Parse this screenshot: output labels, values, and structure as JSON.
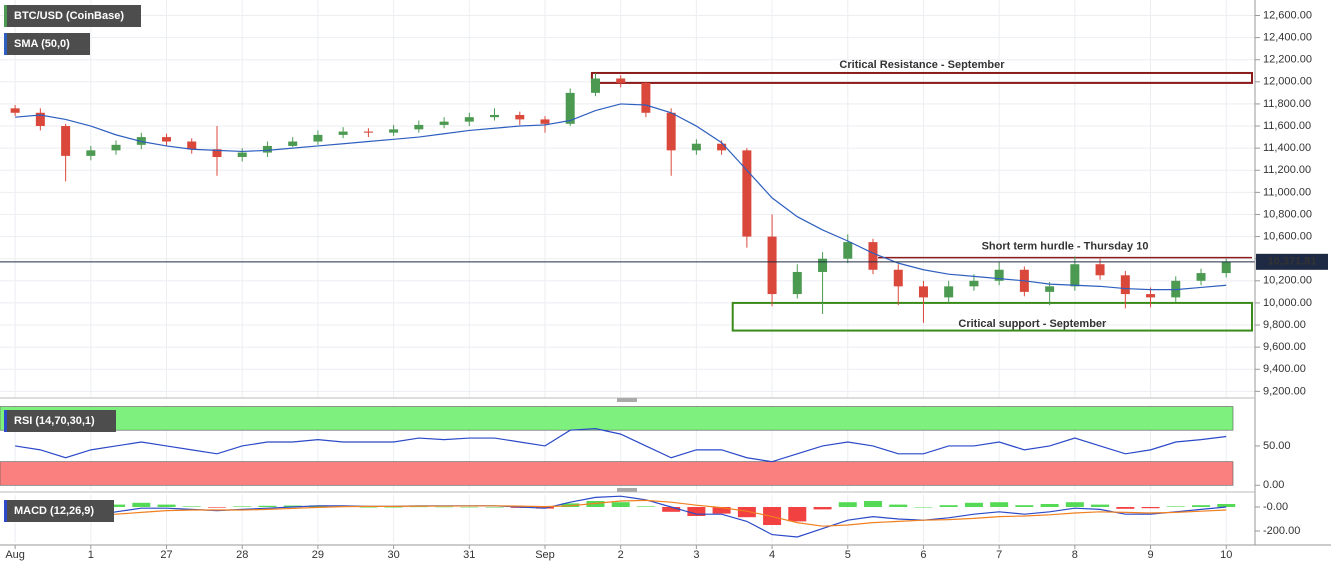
{
  "chart_data": [
    {
      "type": "candlestick",
      "title": "BTC/USD (CoinBase)",
      "x": [
        0,
        0.333,
        0.667,
        1,
        1.333,
        1.667,
        2,
        2.333,
        2.667,
        3,
        3.333,
        3.667,
        4,
        4.333,
        4.667,
        5,
        5.333,
        5.667,
        6,
        6.333,
        6.667,
        7,
        7.333,
        7.667,
        8,
        8.333,
        8.667,
        9,
        9.333,
        9.667,
        10,
        10.333,
        10.667,
        11,
        11.333,
        11.667,
        12,
        12.333,
        12.667,
        13,
        13.333,
        13.667,
        14,
        14.333,
        14.667,
        15,
        15.333,
        15.667,
        16
      ],
      "open": [
        11760,
        11720,
        11600,
        11330,
        11380,
        11430,
        11500,
        11460,
        11390,
        11320,
        11360,
        11420,
        11460,
        11520,
        11550,
        11540,
        11570,
        11610,
        11640,
        11680,
        11700,
        11660,
        11620,
        11900,
        12030,
        11990,
        11720,
        11380,
        11440,
        11380,
        10600,
        10080,
        10280,
        10400,
        10550,
        10300,
        10150,
        10050,
        10150,
        10200,
        10300,
        10100,
        10150,
        10350,
        10250,
        10080,
        10050,
        10200,
        10270
      ],
      "high": [
        11790,
        11760,
        11620,
        11420,
        11470,
        11540,
        11530,
        11490,
        11600,
        11400,
        11460,
        11500,
        11560,
        11590,
        11580,
        11610,
        11650,
        11680,
        11720,
        11760,
        11730,
        11690,
        11940,
        12080,
        12060,
        12000,
        11760,
        11480,
        11470,
        11400,
        10800,
        10350,
        10460,
        10620,
        10580,
        10350,
        10200,
        10200,
        10260,
        10370,
        10330,
        10190,
        10420,
        10400,
        10290,
        10140,
        10240,
        10310,
        10400
      ],
      "low": [
        11690,
        11560,
        11100,
        11290,
        11340,
        11390,
        11420,
        11350,
        11150,
        11280,
        11320,
        11410,
        11430,
        11490,
        11500,
        11510,
        11540,
        11580,
        11600,
        11650,
        11610,
        11540,
        11600,
        11870,
        11950,
        11680,
        11150,
        11340,
        11340,
        10500,
        9970,
        10040,
        9900,
        10360,
        10260,
        9980,
        9820,
        10000,
        10110,
        10160,
        10060,
        9980,
        10110,
        10210,
        9950,
        9960,
        10010,
        10160,
        10230
      ],
      "close": [
        11720,
        11600,
        11330,
        11380,
        11430,
        11500,
        11460,
        11390,
        11320,
        11360,
        11420,
        11460,
        11520,
        11550,
        11540,
        11570,
        11610,
        11640,
        11680,
        11700,
        11660,
        11620,
        11900,
        12030,
        11990,
        11720,
        11380,
        11440,
        11380,
        10600,
        10080,
        10280,
        10400,
        10550,
        10300,
        10150,
        10050,
        10150,
        10200,
        10300,
        10100,
        10150,
        10350,
        10250,
        10080,
        10050,
        10200,
        10270,
        10370
      ],
      "up_color": "#4c9a52",
      "down_color": "#d9483b",
      "series": [
        {
          "name": "SMA (50,0)",
          "color": "#2e5fbf",
          "values": [
            11680,
            11700,
            11660,
            11600,
            11520,
            11460,
            11420,
            11390,
            11380,
            11370,
            11380,
            11400,
            11420,
            11440,
            11460,
            11480,
            11500,
            11530,
            11560,
            11580,
            11600,
            11610,
            11650,
            11740,
            11800,
            11790,
            11720,
            11600,
            11450,
            11200,
            10950,
            10780,
            10660,
            10560,
            10450,
            10360,
            10300,
            10260,
            10240,
            10220,
            10200,
            10170,
            10160,
            10150,
            10130,
            10120,
            10120,
            10140,
            10160
          ]
        }
      ],
      "last_price": {
        "value": 10371.81,
        "label": "10,371.81"
      },
      "annotations": [
        {
          "label": "Critical Resistance - September",
          "low": 11990,
          "high": 12080,
          "start": 7.62,
          "color": "#8b1a1a"
        },
        {
          "label": "Short term hurdle - Thursday 10",
          "level": 10410,
          "start": 11.4,
          "color": "#8b1a1a"
        },
        {
          "label": "Critical support - September",
          "low": 9750,
          "high": 10000,
          "start": 9.48,
          "color": "#3a8a1a"
        }
      ],
      "xlim": [
        -0.2,
        16.38
      ],
      "xticks": [
        {
          "value": 0,
          "label": "Aug"
        },
        1,
        {
          "value": 2,
          "label": "27"
        },
        {
          "value": 3,
          "label": "28"
        },
        {
          "value": 4,
          "label": "29"
        },
        {
          "value": 5,
          "label": "30"
        },
        {
          "value": 6,
          "label": "31"
        },
        {
          "value": 7,
          "label": "Sep"
        },
        {
          "value": 8,
          "label": "2"
        },
        {
          "value": 9,
          "label": "3"
        },
        {
          "value": 10,
          "label": "4"
        },
        {
          "value": 11,
          "label": "5"
        },
        {
          "value": 12,
          "label": "6"
        },
        {
          "value": 13,
          "label": "7"
        },
        {
          "value": 14,
          "label": "8"
        },
        {
          "value": 15,
          "label": "9"
        },
        {
          "value": 16,
          "label": "10"
        }
      ],
      "ylim": [
        9140,
        12740
      ],
      "yticks": [
        {
          "value": 9200,
          "label": "9,200.00"
        },
        {
          "value": 9400,
          "label": "9,400.00"
        },
        {
          "value": 9600,
          "label": "9,600.00"
        },
        {
          "value": 9800,
          "label": "9,800.00"
        },
        {
          "value": 10000,
          "label": "10,000.00"
        },
        {
          "value": 10200,
          "label": "10,200.00"
        },
        {
          "value": 10400,
          "label": "10,400.00"
        },
        {
          "value": 10600,
          "label": "10,600.00"
        },
        {
          "value": 10800,
          "label": "10,800.00"
        },
        {
          "value": 11000,
          "label": "11,000.00"
        },
        {
          "value": 11200,
          "label": "11,200.00"
        },
        {
          "value": 11400,
          "label": "11,400.00"
        },
        {
          "value": 11600,
          "label": "11,600.00"
        },
        {
          "value": 11800,
          "label": "11,800.00"
        },
        {
          "value": 12000,
          "label": "12,000.00"
        },
        {
          "value": 12200,
          "label": "12,200.00"
        },
        {
          "value": 12400,
          "label": "12,400.00"
        },
        {
          "value": 12600,
          "label": "12,600.00"
        }
      ],
      "grid": true
    },
    {
      "type": "line",
      "title": "RSI (14,70,30,1)",
      "series": [
        {
          "color": "#2b49c8",
          "values": [
            50,
            45,
            35,
            45,
            50,
            55,
            50,
            45,
            40,
            50,
            55,
            55,
            58,
            55,
            55,
            55,
            60,
            58,
            60,
            60,
            55,
            50,
            70,
            72,
            65,
            50,
            35,
            45,
            45,
            35,
            30,
            40,
            50,
            55,
            50,
            40,
            40,
            50,
            50,
            55,
            45,
            50,
            60,
            50,
            40,
            45,
            55,
            58,
            62
          ]
        }
      ],
      "bands": [
        {
          "from": 70,
          "to": 100,
          "color": "#7ef07e"
        },
        {
          "from": 0,
          "to": 30,
          "color": "#fa8080"
        }
      ],
      "ylim": [
        -6,
        102
      ],
      "yticks": [
        {
          "value": 0,
          "label": "0.00"
        },
        {
          "value": 50,
          "label": "50.00"
        }
      ]
    },
    {
      "type": "macd",
      "title": "MACD (12,26,9)",
      "histogram": [
        -20,
        -20,
        -30,
        -10,
        20,
        35,
        20,
        5,
        -5,
        5,
        10,
        12,
        13,
        7,
        0,
        0,
        3,
        2,
        1,
        0,
        -7,
        -13,
        30,
        50,
        40,
        5,
        -40,
        -75,
        -55,
        -85,
        -150,
        -120,
        -20,
        40,
        50,
        20,
        0,
        15,
        35,
        40,
        15,
        25,
        40,
        20,
        -15,
        -10,
        5,
        15,
        25
      ],
      "up_color": "#37d437",
      "down_color": "#f02020",
      "series": [
        {
          "color": "#2b49c8",
          "values": [
            -60,
            -70,
            -90,
            -80,
            -40,
            -10,
            -10,
            -20,
            -30,
            -20,
            -10,
            0,
            10,
            10,
            5,
            5,
            10,
            10,
            10,
            10,
            0,
            -10,
            40,
            80,
            90,
            60,
            0,
            -60,
            -60,
            -120,
            -230,
            -250,
            -180,
            -110,
            -80,
            -100,
            -110,
            -90,
            -60,
            -40,
            -60,
            -40,
            -10,
            -20,
            -60,
            -60,
            -40,
            -20,
            0
          ]
        },
        {
          "color": "#f08020",
          "values": [
            -40,
            -50,
            -60,
            -70,
            -60,
            -45,
            -30,
            -25,
            -25,
            -25,
            -20,
            -12,
            -3,
            3,
            5,
            5,
            7,
            8,
            9,
            10,
            7,
            3,
            10,
            30,
            50,
            55,
            40,
            15,
            -5,
            -35,
            -80,
            -130,
            -160,
            -150,
            -130,
            -120,
            -110,
            -105,
            -95,
            -80,
            -75,
            -65,
            -50,
            -40,
            -45,
            -50,
            -45,
            -35,
            -25
          ]
        }
      ],
      "ylim": [
        -300,
        100
      ],
      "yticks": [
        {
          "value": 0,
          "label": "-0.00"
        },
        {
          "value": -200,
          "label": "-200.00"
        }
      ]
    }
  ]
}
